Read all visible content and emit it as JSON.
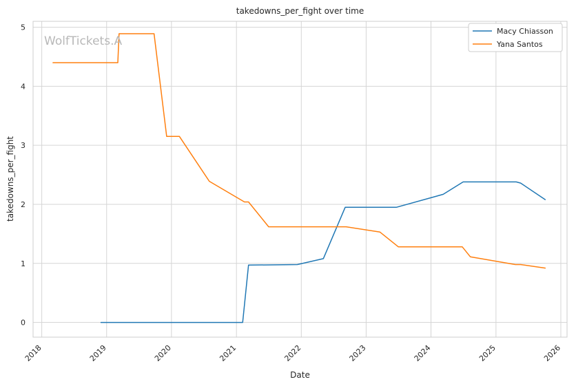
{
  "chart_data": {
    "type": "line",
    "title": "takedowns_per_fight over time",
    "xlabel": "Date",
    "ylabel": "takedowns_per_fight",
    "watermark": "WolfTickets.A",
    "x_ticks": [
      "2018",
      "2019",
      "2020",
      "2021",
      "2022",
      "2023",
      "2024",
      "2025",
      "2026"
    ],
    "y_ticks": [
      "0",
      "1",
      "2",
      "3",
      "4",
      "5"
    ],
    "xlim": [
      "2017-11-13",
      "2026-02-05"
    ],
    "ylim": [
      -0.25,
      5.1
    ],
    "grid": true,
    "legend_position": "top-right",
    "series": [
      {
        "name": "Macy Chiasson",
        "color": "#1f77b4",
        "points": [
          [
            "2018-11-30",
            0.0
          ],
          [
            "2021-02-05",
            0.0
          ],
          [
            "2021-03-10",
            0.97
          ],
          [
            "2021-12-10",
            0.98
          ],
          [
            "2022-05-05",
            1.08
          ],
          [
            "2022-09-05",
            1.95
          ],
          [
            "2023-06-20",
            1.95
          ],
          [
            "2024-03-10",
            2.17
          ],
          [
            "2024-06-30",
            2.38
          ],
          [
            "2025-04-25",
            2.38
          ],
          [
            "2025-05-20",
            2.36
          ],
          [
            "2025-10-05",
            2.08
          ]
        ]
      },
      {
        "name": "Yana Santos",
        "color": "#ff7f0e",
        "points": [
          [
            "2018-03-05",
            4.4
          ],
          [
            "2019-03-05",
            4.4
          ],
          [
            "2019-03-12",
            4.89
          ],
          [
            "2019-09-25",
            4.89
          ],
          [
            "2019-12-05",
            3.15
          ],
          [
            "2020-02-15",
            3.15
          ],
          [
            "2020-08-01",
            2.39
          ],
          [
            "2021-02-15",
            2.04
          ],
          [
            "2021-03-10",
            2.04
          ],
          [
            "2021-07-01",
            1.62
          ],
          [
            "2022-09-10",
            1.62
          ],
          [
            "2023-03-20",
            1.53
          ],
          [
            "2023-07-01",
            1.28
          ],
          [
            "2024-06-25",
            1.28
          ],
          [
            "2024-08-10",
            1.11
          ],
          [
            "2025-04-20",
            0.98
          ],
          [
            "2025-05-20",
            0.98
          ],
          [
            "2025-10-05",
            0.92
          ]
        ]
      }
    ]
  }
}
